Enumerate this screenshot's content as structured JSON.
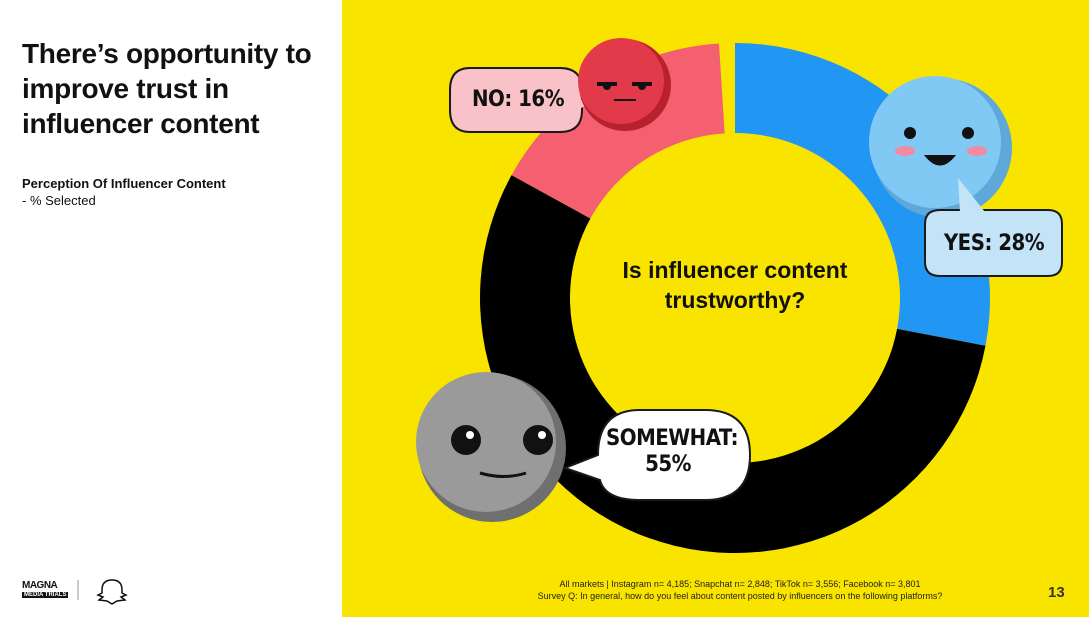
{
  "chart_data": {
    "type": "donut",
    "title": "There’s opportunity to improve trust in influencer content",
    "subtitle": "Perception Of Influencer Content",
    "subtitle_note": "- % Selected",
    "center_text": "Is influencer content trustworthy?",
    "values": [
      28,
      55,
      16
    ],
    "value_labels": [
      "YES: 28%",
      "SOMEWHAT: 55%",
      "NO: 16%"
    ],
    "colors": [
      "#2196f3",
      "#000000",
      "#f4606f"
    ],
    "notes": [
      "All markets | Instagram n= 4,185; Snapchat n= 2,848; TikTok n= 3,556; Facebook n= 3,801",
      "Survey Q: In general, how do you feel about content posted by influencers on the following platforms?"
    ],
    "logo": [
      "MAGNA",
      "MEDIA TRIALS"
    ],
    "page_number": "13"
  }
}
